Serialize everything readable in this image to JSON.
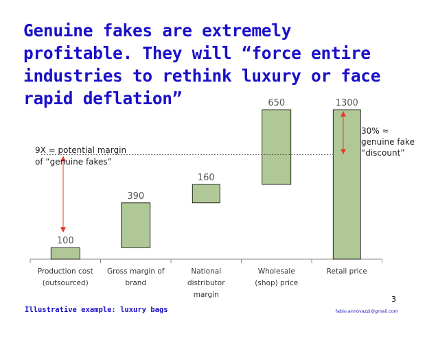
{
  "slide": {
    "title": "Genuine fakes are extremely profitable. They will “force entire industries to rethink luxury or face rapid deflation”",
    "footer_note": "Illustrative example: luxury bags",
    "email": "fabio.annovazzi@gmail.com",
    "page_number": "3",
    "colors": {
      "title": "#1a10c8",
      "bar_fill": "#b0c896",
      "bar_stroke": "#000000",
      "arrow": "#e23b2a",
      "label": "#555555"
    }
  },
  "chart_data": {
    "type": "waterfall",
    "categories": [
      [
        "Production cost",
        "(outsourced)"
      ],
      [
        "Gross margin of",
        "brand"
      ],
      [
        "National",
        "distributor",
        "margin"
      ],
      [
        "Wholesale",
        "(shop) price"
      ],
      [
        "Retail price"
      ]
    ],
    "values": [
      100,
      390,
      160,
      650,
      1300
    ],
    "bar_bottoms": [
      0,
      100,
      490,
      650,
      0
    ],
    "bar_tops": [
      100,
      490,
      650,
      1300,
      1300
    ],
    "ylim": [
      0,
      1300
    ],
    "reference_line_value": 910,
    "annotations": [
      {
        "text": [
          "9X ≈ potential margin",
          "of “genuine fakes”"
        ]
      },
      {
        "text": [
          "30% ≈",
          "genuine fake",
          "“discount”"
        ]
      }
    ]
  }
}
